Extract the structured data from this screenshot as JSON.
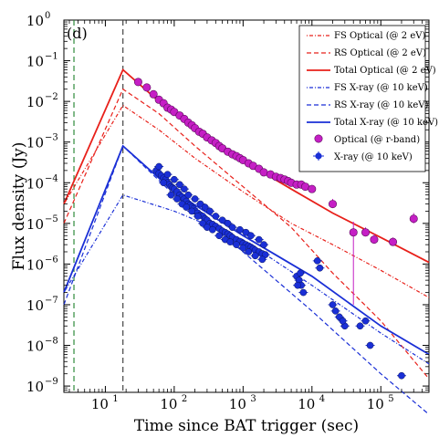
{
  "chart_data": {
    "type": "line",
    "title": "",
    "panel_label": "(d)",
    "xlabel": "Time since BAT trigger (sec)",
    "ylabel": "Flux density (Jy)",
    "xscale": "log",
    "yscale": "log",
    "xlim": [
      2.5,
      500000
    ],
    "ylim": [
      7e-10,
      1
    ],
    "grid": false,
    "legend_position": "top-right",
    "x_ticks": [
      {
        "value": 10,
        "label": "10",
        "exp": "1"
      },
      {
        "value": 100,
        "label": "10",
        "exp": "2"
      },
      {
        "value": 1000,
        "label": "10",
        "exp": "3"
      },
      {
        "value": 10000,
        "label": "10",
        "exp": "4"
      },
      {
        "value": 100000,
        "label": "10",
        "exp": "5"
      }
    ],
    "y_ticks": [
      {
        "value": 1,
        "label": "10",
        "exp": "0"
      },
      {
        "value": 0.1,
        "label": "10",
        "exp": "−1"
      },
      {
        "value": 0.01,
        "label": "10",
        "exp": "−2"
      },
      {
        "value": 0.001,
        "label": "10",
        "exp": "−3"
      },
      {
        "value": 0.0001,
        "label": "10",
        "exp": "−4"
      },
      {
        "value": 1e-05,
        "label": "10",
        "exp": "−5"
      },
      {
        "value": 1e-06,
        "label": "10",
        "exp": "−6"
      },
      {
        "value": 1e-07,
        "label": "10",
        "exp": "−7"
      },
      {
        "value": 1e-08,
        "label": "10",
        "exp": "−8"
      },
      {
        "value": 1e-09,
        "label": "10",
        "exp": "−9"
      }
    ],
    "vlines": [
      {
        "x": 3.5,
        "color": "#2e8b3a"
      },
      {
        "x": 18,
        "color": "#444444"
      }
    ],
    "series": [
      {
        "name": "FS Optical (@ 2 eV)",
        "color": "#e8201a",
        "dash": "1,2,4,2",
        "width": 1.2,
        "x": [
          2.5,
          18,
          60,
          200,
          1000,
          5000,
          20000,
          100000,
          500000
        ],
        "y": [
          3e-05,
          0.008,
          0.002,
          0.0004,
          6e-05,
          1e-05,
          3e-06,
          7e-07,
          1.5e-07
        ]
      },
      {
        "name": "RS Optical (@ 2 eV)",
        "color": "#e8201a",
        "dash": "5,3",
        "width": 1.2,
        "x": [
          2.5,
          18,
          60,
          200,
          1000,
          5000,
          20000,
          100000,
          500000
        ],
        "y": [
          1e-05,
          0.02,
          0.005,
          0.0008,
          8e-05,
          8e-06,
          6e-07,
          4e-08,
          1.5e-09
        ]
      },
      {
        "name": "Total Optical (@ 2 eV)",
        "color": "#e8201a",
        "dash": "",
        "width": 1.8,
        "x": [
          2.5,
          18,
          60,
          200,
          1000,
          5000,
          20000,
          100000,
          500000
        ],
        "y": [
          3e-05,
          0.06,
          0.01,
          0.002,
          0.00035,
          7e-05,
          1.8e-05,
          4.5e-06,
          1.1e-06
        ]
      },
      {
        "name": "FS X-ray (@ 10 keV)",
        "color": "#1a2fd6",
        "dash": "1,2,4,2",
        "width": 1.2,
        "x": [
          2.5,
          18,
          100,
          1000,
          10000,
          100000,
          500000
        ],
        "y": [
          2e-07,
          5e-05,
          2e-05,
          4e-06,
          3e-07,
          2e-08,
          3.5e-09
        ]
      },
      {
        "name": "RS X-ray (@ 10 keV)",
        "color": "#1a2fd6",
        "dash": "5,3",
        "width": 1.2,
        "x": [
          2.5,
          18,
          100,
          1000,
          10000,
          100000,
          500000
        ],
        "y": [
          1e-07,
          0.0008,
          5e-05,
          2e-06,
          7e-08,
          2e-09,
          2e-10
        ]
      },
      {
        "name": "Total X-ray (@ 10 keV)",
        "color": "#1a2fd6",
        "dash": "",
        "width": 1.8,
        "x": [
          2.5,
          18,
          100,
          1000,
          10000,
          100000,
          500000
        ],
        "y": [
          2e-07,
          0.0008,
          6e-05,
          5e-06,
          5e-07,
          3e-08,
          6e-09
        ]
      }
    ],
    "points": [
      {
        "name": "Optical (@ r-band)",
        "color": "#c51fc5",
        "marker": "circle",
        "x": [
          30,
          40,
          50,
          60,
          70,
          80,
          90,
          100,
          120,
          140,
          160,
          180,
          200,
          230,
          260,
          300,
          350,
          400,
          450,
          500,
          600,
          700,
          800,
          900,
          1000,
          1200,
          1400,
          1700,
          2000,
          2500,
          3000,
          3500,
          4000,
          4500,
          5000,
          6000,
          7000,
          8000,
          10000,
          20000,
          40000,
          60000,
          80000,
          150000,
          300000
        ],
        "y": [
          0.03,
          0.022,
          0.015,
          0.011,
          0.009,
          0.007,
          0.0063,
          0.0055,
          0.0045,
          0.0037,
          0.003,
          0.0026,
          0.0022,
          0.0018,
          0.0016,
          0.0013,
          0.0011,
          0.00095,
          0.0008,
          0.0007,
          0.00058,
          0.0005,
          0.00045,
          0.0004,
          0.00036,
          0.0003,
          0.00026,
          0.00022,
          0.00018,
          0.00016,
          0.00014,
          0.00013,
          0.00012,
          0.00011,
          0.0001,
          9e-05,
          9e-05,
          8e-05,
          7e-05,
          3e-05,
          6e-06,
          6e-06,
          4e-06,
          3.5e-06,
          1.3e-05
        ],
        "yerr_lo": [
          0,
          0,
          0,
          0,
          0,
          0,
          0,
          0,
          0,
          0,
          0,
          0,
          0,
          0,
          0,
          0,
          0,
          0,
          0,
          0,
          0,
          0,
          0,
          0,
          0,
          0,
          0,
          0,
          0,
          0,
          0,
          0,
          0,
          0,
          0,
          0,
          0,
          0,
          0,
          0,
          5.9e-06,
          8e-07,
          8e-07,
          5e-07,
          3e-06
        ],
        "yerr_hi": [
          0,
          0,
          0,
          0,
          0,
          0,
          0,
          0,
          0,
          0,
          0,
          0,
          0,
          0,
          0,
          0,
          0,
          0,
          0,
          0,
          0,
          0,
          0,
          0,
          0,
          0,
          0,
          0,
          0,
          0,
          0,
          0,
          0,
          0,
          0,
          0,
          0,
          0,
          0,
          1e-05,
          5e-06,
          2e-06,
          1.5e-06,
          1e-06,
          5e-06
        ]
      },
      {
        "name": "X-ray (@ 10 keV)",
        "color": "#1a2fd6",
        "marker": "circle",
        "xerr": true,
        "x": [
          55,
          60,
          65,
          70,
          75,
          80,
          85,
          90,
          95,
          100,
          110,
          120,
          130,
          140,
          150,
          160,
          170,
          180,
          190,
          200,
          220,
          240,
          260,
          280,
          300,
          330,
          360,
          400,
          450,
          500,
          550,
          600,
          650,
          700,
          800,
          900,
          1000,
          1100,
          1200,
          1300,
          1400,
          1500,
          1700,
          1900,
          2100,
          6000,
          6500,
          7000,
          7500,
          12000,
          20000,
          25000,
          30000,
          50000,
          60000,
          70000,
          200000
        ],
        "y": [
          0.0002,
          0.00017,
          0.00015,
          0.00013,
          0.00012,
          0.0001,
          9e-05,
          8e-05,
          7.5e-05,
          7e-05,
          6e-05,
          5e-05,
          4.5e-05,
          4e-05,
          3.5e-05,
          3e-05,
          2.8e-05,
          2.5e-05,
          2.3e-05,
          2e-05,
          1.8e-05,
          1.6e-05,
          1.5e-05,
          1.3e-05,
          1.2e-05,
          1e-05,
          9.5e-06,
          8.5e-06,
          7.5e-06,
          6.5e-06,
          6e-06,
          5.5e-06,
          5e-06,
          4.5e-06,
          4e-06,
          3.6e-06,
          3.2e-06,
          3e-06,
          2.8e-06,
          2.6e-06,
          2.4e-06,
          2.2e-06,
          2e-06,
          1.8e-06,
          1.7e-06,
          5e-07,
          4e-07,
          3e-07,
          2e-07,
          1.2e-06,
          1e-07,
          5e-08,
          3e-08,
          3e-08,
          4e-08,
          1e-08,
          1.8e-09
        ],
        "scatter": [
          [
            60,
            0.00025
          ],
          [
            70,
            0.0001
          ],
          [
            80,
            0.00016
          ],
          [
            90,
            5e-05
          ],
          [
            100,
            0.00012
          ],
          [
            110,
            4e-05
          ],
          [
            120,
            9e-05
          ],
          [
            130,
            3e-05
          ],
          [
            140,
            7e-05
          ],
          [
            150,
            2.5e-05
          ],
          [
            160,
            5e-05
          ],
          [
            180,
            2e-05
          ],
          [
            200,
            4e-05
          ],
          [
            220,
            1.5e-05
          ],
          [
            240,
            3e-05
          ],
          [
            260,
            1e-05
          ],
          [
            280,
            2.5e-05
          ],
          [
            300,
            8e-06
          ],
          [
            330,
            2e-05
          ],
          [
            360,
            7e-06
          ],
          [
            400,
            1.5e-05
          ],
          [
            450,
            5e-06
          ],
          [
            500,
            1.2e-05
          ],
          [
            550,
            4e-06
          ],
          [
            600,
            1e-05
          ],
          [
            650,
            3.5e-06
          ],
          [
            700,
            8e-06
          ],
          [
            800,
            3e-06
          ],
          [
            900,
            7e-06
          ],
          [
            1000,
            2.5e-06
          ],
          [
            1100,
            6e-06
          ],
          [
            1200,
            2e-06
          ],
          [
            1300,
            5e-06
          ],
          [
            1500,
            1.6e-06
          ],
          [
            1700,
            4e-06
          ],
          [
            1900,
            1.3e-06
          ],
          [
            2000,
            3e-06
          ],
          [
            6200,
            3e-07
          ],
          [
            6800,
            6e-07
          ],
          [
            13000,
            8e-07
          ],
          [
            22000,
            7e-08
          ],
          [
            28000,
            4e-08
          ]
        ]
      }
    ]
  }
}
